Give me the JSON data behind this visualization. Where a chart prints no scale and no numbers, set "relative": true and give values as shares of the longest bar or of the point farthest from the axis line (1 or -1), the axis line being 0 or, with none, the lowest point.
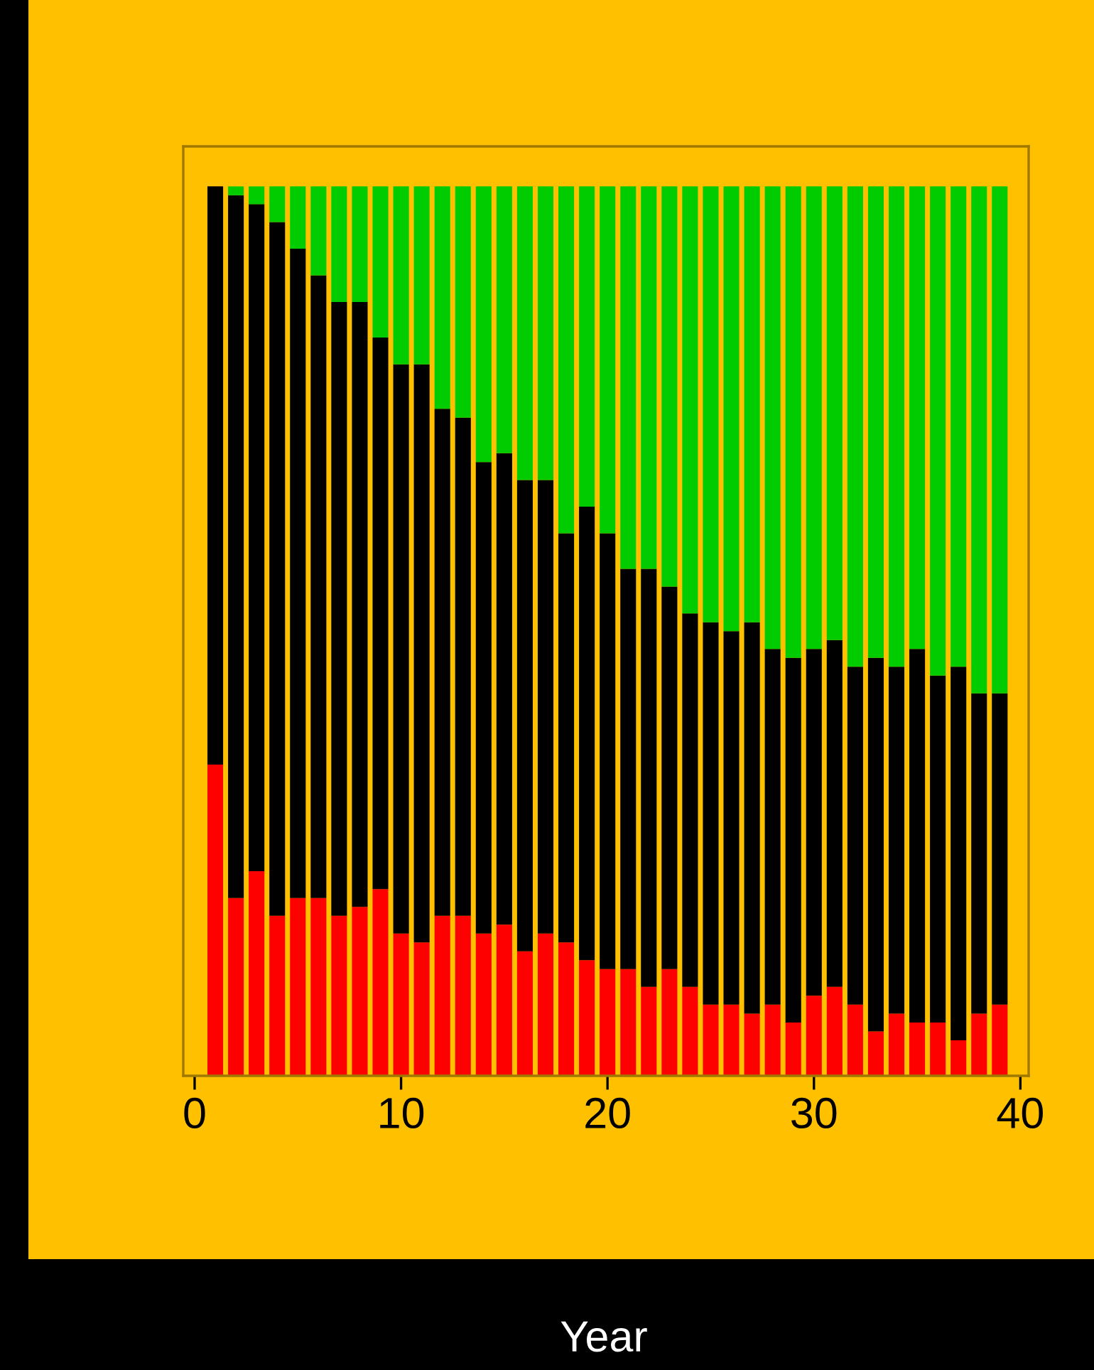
{
  "chart_data": {
    "type": "bar",
    "xlabel": "Year",
    "stacked": true,
    "relative": true,
    "x": [
      1,
      2,
      3,
      4,
      5,
      6,
      7,
      8,
      9,
      10,
      11,
      12,
      13,
      14,
      15,
      16,
      17,
      18,
      19,
      20,
      21,
      22,
      23,
      24,
      25,
      26,
      27,
      28,
      29,
      30,
      31,
      32,
      33,
      34,
      35,
      36,
      37,
      38,
      39
    ],
    "xlim": [
      -0.55,
      40.4
    ],
    "xticks": [
      0,
      10,
      20,
      30,
      40
    ],
    "tick_labels": "x",
    "grid": false,
    "legend": false,
    "series": [
      {
        "color": "#ff0000",
        "values": [
          0.35,
          0.2,
          0.23,
          0.18,
          0.2,
          0.2,
          0.18,
          0.19,
          0.21,
          0.16,
          0.15,
          0.18,
          0.18,
          0.16,
          0.17,
          0.14,
          0.16,
          0.15,
          0.13,
          0.12,
          0.12,
          0.1,
          0.12,
          0.1,
          0.08,
          0.08,
          0.07,
          0.08,
          0.06,
          0.09,
          0.1,
          0.08,
          0.05,
          0.07,
          0.06,
          0.06,
          0.04,
          0.07,
          0.08
        ]
      },
      {
        "color": "#000000",
        "values": [
          0.65,
          0.79,
          0.75,
          0.78,
          0.73,
          0.7,
          0.69,
          0.68,
          0.62,
          0.64,
          0.65,
          0.57,
          0.56,
          0.53,
          0.53,
          0.53,
          0.51,
          0.46,
          0.51,
          0.49,
          0.45,
          0.47,
          0.43,
          0.42,
          0.43,
          0.42,
          0.44,
          0.4,
          0.41,
          0.39,
          0.39,
          0.38,
          0.42,
          0.39,
          0.42,
          0.39,
          0.42,
          0.36,
          0.35
        ]
      },
      {
        "color": "#00cc00",
        "values": [
          0.0,
          0.01,
          0.02,
          0.04,
          0.07,
          0.1,
          0.13,
          0.13,
          0.17,
          0.2,
          0.2,
          0.25,
          0.26,
          0.31,
          0.3,
          0.33,
          0.33,
          0.39,
          0.36,
          0.39,
          0.43,
          0.43,
          0.45,
          0.48,
          0.49,
          0.5,
          0.49,
          0.52,
          0.53,
          0.52,
          0.51,
          0.54,
          0.53,
          0.54,
          0.52,
          0.55,
          0.54,
          0.57,
          0.57
        ]
      }
    ]
  }
}
